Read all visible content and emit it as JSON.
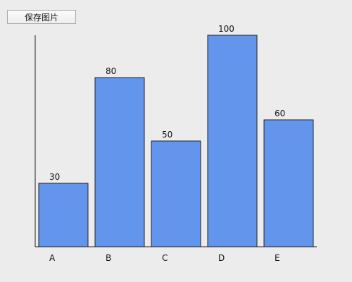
{
  "toolbar": {
    "save_label": "保存图片"
  },
  "chart_data": {
    "type": "bar",
    "categories": [
      "A",
      "B",
      "C",
      "D",
      "E"
    ],
    "values": [
      30,
      80,
      50,
      100,
      60
    ],
    "title": "",
    "xlabel": "",
    "ylabel": "",
    "ylim": [
      0,
      100
    ],
    "grid": false,
    "bar_color": "#6495ed"
  }
}
